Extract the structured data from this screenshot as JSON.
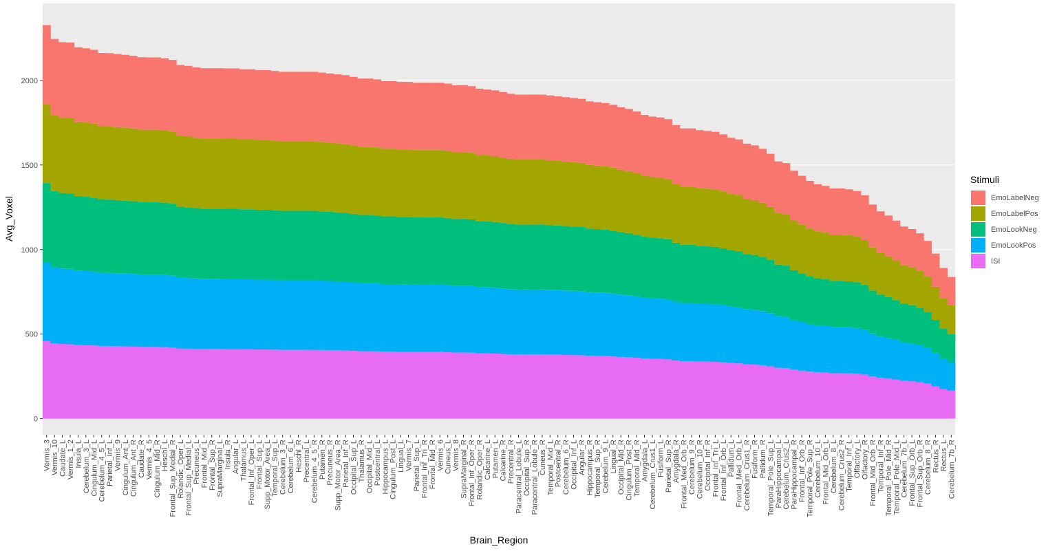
{
  "chart_data": {
    "type": "stacked_bar",
    "x_label": "Brain_Region",
    "y_label": "Avg_Voxel",
    "legend_title": "Stimuli",
    "legend": "right",
    "grid": true,
    "categories": [
      "Vermis_3",
      "Vermis_10",
      "Caudate_L",
      "Vermis_1_2",
      "Insula_L",
      "Cerebelum_3_L",
      "Cingulum_Mid_L",
      "Cerebelum_4_5_L",
      "Parietal_Inf_L",
      "Vermis_9",
      "Cingulum_Ant_L",
      "Cingulum_Ant_R",
      "Caudate_R",
      "Vermis_4_5",
      "Cingulum_Mid_R",
      "Heschl_L",
      "Frontal_Sup_Medial_R",
      "Rolandic_Oper_L",
      "Frontal_Sup_Medial_L",
      "Precuneus_L",
      "Frontal_Mid_L",
      "Frontal_Sup_R",
      "SupraMarginal_L",
      "Insula_R",
      "Angular_L",
      "Thalamus_L",
      "Frontal_Inf_Oper_L",
      "Frontal_Sup_L",
      "Supp_Motor_Area_L",
      "Temporal_Sup_L",
      "Cerebelum_3_R",
      "Cerebelum_6_L",
      "Heschl_R",
      "Precentral_L",
      "Cerebelum_4_5_R",
      "Putamen_R",
      "Precuneus_R",
      "Supp_Motor_Area_R",
      "Parietal_Inf_R",
      "Occipital_Sup_L",
      "Thalamus_R",
      "Occipital_Mid_L",
      "Postcentral_L",
      "Hippocampus_L",
      "Cingulum_Post_L",
      "Lingual_L",
      "Vermis_7",
      "Parietal_Sup_L",
      "Frontal_Inf_Tri_R",
      "Frontal_Mid_R",
      "Vermis_6",
      "Cuneus_L",
      "Vermis_8",
      "SupraMarginal_R",
      "Frontal_Inf_Oper_R",
      "Rolandic_Oper_R",
      "Calcarine_L",
      "Putamen_L",
      "Calcarine_R",
      "Precentral_R",
      "Paracentral_Lobule_L",
      "Occipital_Sup_R",
      "Paracentral_Lobule_R",
      "Cuneus_R",
      "Temporal_Mid_L",
      "Postcentral_R",
      "Cerebelum_6_R",
      "Occipital_Inf_L",
      "Angular_R",
      "Hippocampus_R",
      "Temporal_Sup_R",
      "Cerebelum_9_L",
      "Lingual_R",
      "Occipital_Mid_R",
      "Cingulum_Post_R",
      "Temporal_Mid_R",
      "Amygdala_L",
      "Cerebelum_Crus1_L",
      "Fusiform_L",
      "Parietal_Sup_R",
      "Amygdala_R",
      "Frontal_Med_Orb_R",
      "Cerebelum_9_R",
      "Cerebelum_10_R",
      "Occipital_Inf_R",
      "Frontal_Inf_Tri_L",
      "Frontal_Inf_Orb_L",
      "Pallidum_L",
      "Frontal_Med_Orb_L",
      "Cerebelum_Crus1_R",
      "Fusiform_R",
      "Pallidum_R",
      "Temporal_Pole_Sup_L",
      "ParaHippocampal_L",
      "Cerebelum_Crus2_L",
      "ParaHippocampal_R",
      "Frontal_Inf_Orb_R",
      "Temporal_Pole_Sup_R",
      "Cerebelum_10_L",
      "Frontal_Mid_Orb_L",
      "Cerebelum_8_L",
      "Cerebelum_Crus2_R",
      "Temporal_Inf_L",
      "Olfactory_L",
      "Olfactory_R",
      "Frontal_Mid_Orb_R",
      "Temporal_Inf_R",
      "Temporal_Pole_Mid_R",
      "Temporal_Pole_Mid_L",
      "Cerebelum_7b_L",
      "Frontal_Sup_Orb_L",
      "Frontal_Sup_Orb_R",
      "Cerebelum_8_R",
      "Rectus_R",
      "Rectus_L",
      "Cerebelum_7b_R"
    ],
    "series": [
      {
        "name": "EmoLabelNeg",
        "color": "#F8766D",
        "values": [
          467,
          450,
          446,
          446,
          440,
          439,
          437,
          433,
          433,
          432,
          431,
          430,
          428,
          428,
          428,
          427,
          425,
          419,
          418,
          416,
          415,
          415,
          415,
          415,
          415,
          414,
          414,
          413,
          413,
          412,
          411,
          411,
          411,
          411,
          411,
          410,
          409,
          408,
          407,
          405,
          403,
          403,
          402,
          400,
          400,
          399,
          399,
          398,
          398,
          398,
          398,
          397,
          395,
          395,
          394,
          391,
          390,
          389,
          387,
          385,
          384,
          384,
          384,
          384,
          383,
          382,
          381,
          380,
          379,
          376,
          375,
          374,
          372,
          369,
          367,
          364,
          360,
          358,
          357,
          355,
          348,
          344,
          344,
          342,
          341,
          340,
          337,
          333,
          331,
          326,
          324,
          320,
          314,
          305,
          303,
          294,
          288,
          282,
          278,
          276,
          273,
          273,
          272,
          270,
          265,
          254,
          246,
          241,
          235,
          228,
          225,
          220,
          211,
          196,
          179,
          168
        ]
      },
      {
        "name": "EmoLabelPos",
        "color": "#A3A500",
        "values": [
          467,
          450,
          446,
          446,
          440,
          439,
          437,
          433,
          433,
          432,
          431,
          430,
          428,
          428,
          428,
          427,
          425,
          419,
          418,
          416,
          415,
          415,
          415,
          415,
          415,
          414,
          414,
          413,
          413,
          412,
          411,
          411,
          411,
          411,
          411,
          410,
          409,
          408,
          407,
          405,
          403,
          403,
          402,
          400,
          400,
          399,
          399,
          398,
          398,
          398,
          398,
          397,
          395,
          395,
          394,
          391,
          390,
          389,
          387,
          385,
          384,
          384,
          384,
          384,
          383,
          382,
          381,
          380,
          379,
          376,
          375,
          374,
          372,
          369,
          367,
          364,
          360,
          358,
          357,
          355,
          348,
          344,
          344,
          342,
          341,
          340,
          337,
          333,
          331,
          326,
          324,
          320,
          314,
          305,
          303,
          294,
          288,
          282,
          278,
          276,
          273,
          273,
          272,
          270,
          265,
          254,
          246,
          241,
          235,
          228,
          225,
          220,
          211,
          196,
          179,
          168
        ]
      },
      {
        "name": "EmoLookNeg",
        "color": "#00BF7D",
        "values": [
          467,
          450,
          446,
          446,
          440,
          439,
          437,
          433,
          433,
          432,
          431,
          430,
          428,
          428,
          428,
          427,
          425,
          419,
          418,
          416,
          415,
          415,
          415,
          415,
          415,
          414,
          414,
          413,
          413,
          412,
          411,
          411,
          411,
          411,
          411,
          410,
          409,
          408,
          407,
          405,
          403,
          403,
          402,
          400,
          400,
          399,
          399,
          398,
          398,
          398,
          398,
          397,
          395,
          395,
          394,
          391,
          390,
          389,
          387,
          385,
          384,
          384,
          384,
          384,
          383,
          382,
          381,
          380,
          379,
          376,
          375,
          374,
          372,
          369,
          367,
          364,
          360,
          358,
          357,
          355,
          348,
          344,
          344,
          342,
          341,
          340,
          337,
          333,
          331,
          326,
          324,
          320,
          314,
          305,
          303,
          294,
          288,
          282,
          278,
          276,
          273,
          273,
          272,
          270,
          265,
          254,
          246,
          241,
          235,
          228,
          225,
          220,
          211,
          196,
          179,
          168
        ]
      },
      {
        "name": "EmoLookPos",
        "color": "#00B0F6",
        "values": [
          467,
          450,
          446,
          446,
          440,
          439,
          437,
          433,
          433,
          432,
          431,
          430,
          428,
          428,
          428,
          427,
          425,
          419,
          418,
          416,
          415,
          415,
          415,
          415,
          415,
          414,
          414,
          413,
          413,
          412,
          411,
          411,
          411,
          411,
          411,
          410,
          409,
          408,
          407,
          405,
          403,
          403,
          402,
          400,
          400,
          399,
          399,
          398,
          398,
          398,
          398,
          397,
          395,
          395,
          394,
          391,
          390,
          389,
          387,
          385,
          384,
          384,
          384,
          384,
          383,
          382,
          381,
          380,
          379,
          376,
          375,
          374,
          372,
          369,
          367,
          364,
          360,
          358,
          357,
          355,
          348,
          344,
          344,
          342,
          341,
          340,
          337,
          333,
          331,
          326,
          324,
          320,
          314,
          305,
          303,
          294,
          288,
          282,
          278,
          276,
          273,
          273,
          272,
          270,
          265,
          254,
          246,
          241,
          235,
          228,
          225,
          220,
          211,
          196,
          179,
          168
        ]
      },
      {
        "name": "ISI",
        "color": "#E76BF3",
        "values": [
          459,
          445,
          442,
          440,
          436,
          434,
          433,
          430,
          429,
          428,
          427,
          426,
          425,
          424,
          424,
          423,
          421,
          415,
          414,
          413,
          412,
          412,
          412,
          411,
          411,
          410,
          410,
          409,
          409,
          408,
          407,
          407,
          407,
          407,
          407,
          406,
          405,
          404,
          403,
          401,
          399,
          399,
          398,
          396,
          396,
          395,
          395,
          394,
          394,
          394,
          394,
          393,
          391,
          391,
          390,
          387,
          386,
          385,
          383,
          381,
          380,
          380,
          380,
          380,
          379,
          378,
          377,
          376,
          375,
          372,
          371,
          370,
          368,
          365,
          363,
          360,
          356,
          354,
          353,
          351,
          344,
          340,
          340,
          338,
          337,
          336,
          333,
          329,
          327,
          322,
          320,
          316,
          310,
          301,
          299,
          290,
          284,
          278,
          274,
          272,
          269,
          269,
          268,
          266,
          261,
          250,
          242,
          237,
          231,
          224,
          221,
          216,
          207,
          192,
          175,
          166
        ]
      }
    ],
    "ylim": [
      -95,
      2455
    ],
    "yticks": [
      0,
      500,
      1000,
      1500,
      2000
    ]
  }
}
